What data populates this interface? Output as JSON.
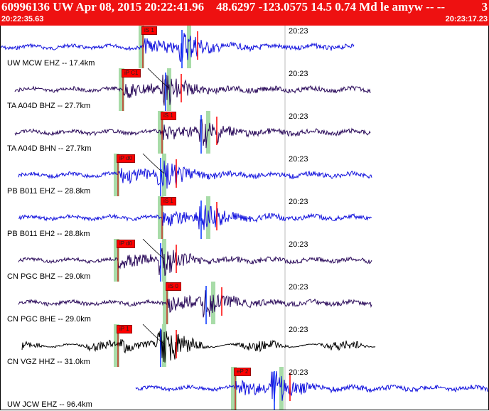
{
  "header": {
    "title": "60996136 UW Apr 08, 2015 20:22:41.96    48.6297 -123.0575 14.5 0.74 Md le amyw -- --",
    "extra": "3",
    "start_time": "20:22:35.63",
    "end_time": "20:23:17.23",
    "background": "#ee1111"
  },
  "minute_label": "20:23",
  "traces": [
    {
      "label": "UW MCW EHZ -- 17.4km",
      "color": "#1010dd",
      "pick": "iS 1",
      "pick_fraction": 0.29,
      "travel_curve": false
    },
    {
      "label": "TA A04D BHZ -- 27.7km",
      "color": "#2a0a5a",
      "pick": "iP C1",
      "pick_fraction": 0.25,
      "travel_curve": true
    },
    {
      "label": "TA A04D BHN -- 27.7km",
      "color": "#2a0a5a",
      "pick": "iS 1",
      "pick_fraction": 0.33,
      "travel_curve": false
    },
    {
      "label": "PB B011 EHZ -- 28.8km",
      "color": "#1010dd",
      "pick": "iP d0",
      "pick_fraction": 0.24,
      "travel_curve": true
    },
    {
      "label": "PB B011 EH2 -- 28.8km",
      "color": "#1010dd",
      "pick": "iS 1",
      "pick_fraction": 0.33,
      "travel_curve": false
    },
    {
      "label": "CN PGC BHZ -- 29.0km",
      "color": "#2a0a5a",
      "pick": "iP d0",
      "pick_fraction": 0.24,
      "travel_curve": true
    },
    {
      "label": "CN PGC BHE -- 29.0km",
      "color": "#2a0a5a",
      "pick": "iS 0",
      "pick_fraction": 0.34,
      "travel_curve": false
    },
    {
      "label": "CN VGZ HHZ -- 31.0km",
      "color": "#000000",
      "pick": "iP 1",
      "pick_fraction": 0.24,
      "travel_curve": true
    },
    {
      "label": "UW JCW EHZ -- 96.4km",
      "color": "#1010dd",
      "pick": "eP 2",
      "pick_fraction": 0.48,
      "travel_curve": false
    }
  ]
}
